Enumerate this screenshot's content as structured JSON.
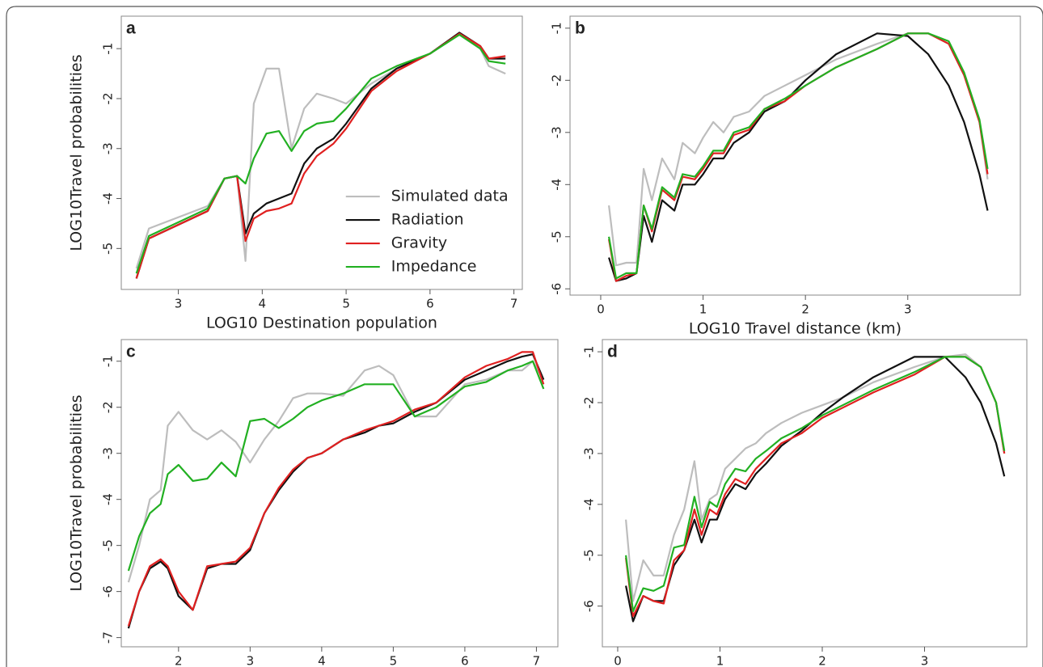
{
  "chart_data": [
    {
      "type": "line",
      "panel_label": "a",
      "xlabel": "LOG10 Destination population",
      "ylabel": "LOG10Travel probabilities",
      "legend": "center-right",
      "xlim": [
        2.32,
        7.1
      ],
      "ylim": [
        -5.82,
        -0.35
      ],
      "xticks": [
        3,
        4,
        5,
        6,
        7
      ],
      "yticks": [
        -5,
        -4,
        -3,
        -2,
        -1
      ],
      "x": [
        2.5,
        2.65,
        3.35,
        3.55,
        3.7,
        3.8,
        3.9,
        4.05,
        4.2,
        4.35,
        4.5,
        4.65,
        4.85,
        5.0,
        5.3,
        5.6,
        6.0,
        6.35,
        6.6,
        6.7,
        6.9
      ],
      "series": [
        {
          "name": "Simulated data",
          "color": "#bdbdbd",
          "values": [
            -5.4,
            -4.6,
            -4.15,
            -3.6,
            -3.55,
            -5.25,
            -2.1,
            -1.4,
            -1.4,
            -3.0,
            -2.2,
            -1.9,
            -2.0,
            -2.1,
            -1.7,
            -1.4,
            -1.1,
            -0.7,
            -1.0,
            -1.35,
            -1.5
          ]
        },
        {
          "name": "Radiation",
          "color": "#111111",
          "values": [
            -5.6,
            -4.8,
            -4.25,
            -3.6,
            -3.55,
            -4.7,
            -4.3,
            -4.1,
            -4.0,
            -3.9,
            -3.3,
            -3.0,
            -2.8,
            -2.5,
            -1.8,
            -1.4,
            -1.1,
            -0.68,
            -0.95,
            -1.2,
            -1.2
          ]
        },
        {
          "name": "Gravity",
          "color": "#e02020",
          "values": [
            -5.6,
            -4.8,
            -4.25,
            -3.6,
            -3.55,
            -4.85,
            -4.4,
            -4.25,
            -4.2,
            -4.1,
            -3.5,
            -3.15,
            -2.9,
            -2.6,
            -1.85,
            -1.45,
            -1.1,
            -0.7,
            -0.95,
            -1.2,
            -1.15
          ]
        },
        {
          "name": "Impedance",
          "color": "#22b022",
          "values": [
            -5.5,
            -4.75,
            -4.2,
            -3.6,
            -3.55,
            -3.7,
            -3.2,
            -2.7,
            -2.65,
            -3.05,
            -2.65,
            -2.5,
            -2.45,
            -2.2,
            -1.6,
            -1.35,
            -1.1,
            -0.72,
            -1.0,
            -1.25,
            -1.3
          ]
        }
      ]
    },
    {
      "type": "line",
      "panel_label": "b",
      "xlabel": "LOG10  Travel distance (km)",
      "xlim": [
        -0.3,
        4.1
      ],
      "ylim": [
        -6.12,
        -0.77
      ],
      "xticks": [
        0,
        1,
        2,
        3
      ],
      "yticks": [
        -6,
        -5,
        -4,
        -3,
        -2,
        -1
      ],
      "x": [
        0.08,
        0.15,
        0.25,
        0.35,
        0.42,
        0.5,
        0.6,
        0.72,
        0.8,
        0.92,
        1.0,
        1.1,
        1.2,
        1.3,
        1.45,
        1.6,
        1.8,
        2.0,
        2.3,
        2.7,
        3.0,
        3.2,
        3.4,
        3.55,
        3.7,
        3.78
      ],
      "series": [
        {
          "color": "#bdbdbd",
          "values": [
            -4.4,
            -5.55,
            -5.5,
            -5.5,
            -3.7,
            -4.3,
            -3.5,
            -3.9,
            -3.2,
            -3.4,
            -3.1,
            -2.8,
            -3.0,
            -2.7,
            -2.6,
            -2.3,
            -2.1,
            -1.9,
            -1.6,
            -1.3,
            -1.1,
            -1.1,
            -1.3,
            -1.9,
            -2.8,
            -3.9
          ]
        },
        {
          "color": "#111111",
          "values": [
            -5.4,
            -5.85,
            -5.8,
            -5.7,
            -4.6,
            -5.1,
            -4.3,
            -4.5,
            -4.0,
            -4.0,
            -3.8,
            -3.5,
            -3.5,
            -3.2,
            -3.0,
            -2.6,
            -2.4,
            -2.0,
            -1.5,
            -1.1,
            -1.15,
            -1.5,
            -2.1,
            -2.8,
            -3.8,
            -4.5
          ]
        },
        {
          "color": "#e02020",
          "values": [
            -5.05,
            -5.85,
            -5.75,
            -5.7,
            -4.4,
            -4.9,
            -4.1,
            -4.3,
            -3.85,
            -3.9,
            -3.7,
            -3.4,
            -3.4,
            -3.05,
            -2.95,
            -2.55,
            -2.4,
            -2.1,
            -1.75,
            -1.4,
            -1.1,
            -1.1,
            -1.3,
            -1.9,
            -2.8,
            -3.8
          ]
        },
        {
          "color": "#22b022",
          "values": [
            -5.0,
            -5.8,
            -5.7,
            -5.7,
            -4.4,
            -4.85,
            -4.05,
            -4.25,
            -3.8,
            -3.85,
            -3.65,
            -3.35,
            -3.35,
            -3.0,
            -2.9,
            -2.55,
            -2.35,
            -2.1,
            -1.75,
            -1.4,
            -1.1,
            -1.1,
            -1.25,
            -1.85,
            -2.75,
            -3.7
          ]
        }
      ]
    },
    {
      "type": "line",
      "panel_label": "c",
      "xlabel": "LOG10 Destination population",
      "ylabel": "LOG10Travel probabilities",
      "xlim": [
        1.2,
        7.3
      ],
      "ylim": [
        -7.2,
        -0.53
      ],
      "xticks": [
        2,
        3,
        4,
        5,
        6,
        7
      ],
      "yticks": [
        -7,
        -6,
        -5,
        -4,
        -3,
        -2,
        -1
      ],
      "x": [
        1.3,
        1.45,
        1.6,
        1.75,
        1.85,
        2.0,
        2.2,
        2.4,
        2.6,
        2.8,
        3.0,
        3.2,
        3.4,
        3.6,
        3.8,
        4.0,
        4.3,
        4.6,
        4.8,
        5.0,
        5.3,
        5.6,
        6.0,
        6.3,
        6.6,
        6.8,
        6.95,
        7.1
      ],
      "series": [
        {
          "color": "#bdbdbd",
          "values": [
            -5.8,
            -5.0,
            -4.0,
            -3.8,
            -2.4,
            -2.1,
            -2.5,
            -2.7,
            -2.5,
            -2.75,
            -3.2,
            -2.7,
            -2.3,
            -1.8,
            -1.7,
            -1.7,
            -1.75,
            -1.2,
            -1.1,
            -1.3,
            -2.2,
            -2.2,
            -1.5,
            -1.4,
            -1.2,
            -1.2,
            -1.0,
            -1.4
          ]
        },
        {
          "color": "#111111",
          "values": [
            -6.8,
            -6.0,
            -5.5,
            -5.35,
            -5.5,
            -6.1,
            -6.4,
            -5.5,
            -5.4,
            -5.4,
            -5.1,
            -4.3,
            -3.8,
            -3.4,
            -3.1,
            -3.0,
            -2.7,
            -2.55,
            -2.4,
            -2.35,
            -2.1,
            -1.9,
            -1.4,
            -1.2,
            -1.0,
            -0.9,
            -0.85,
            -1.4
          ]
        },
        {
          "color": "#e02020",
          "values": [
            -6.75,
            -6.0,
            -5.45,
            -5.3,
            -5.45,
            -6.0,
            -6.4,
            -5.45,
            -5.4,
            -5.35,
            -5.05,
            -4.3,
            -3.75,
            -3.35,
            -3.1,
            -3.0,
            -2.7,
            -2.5,
            -2.4,
            -2.3,
            -2.05,
            -1.9,
            -1.35,
            -1.1,
            -0.95,
            -0.8,
            -0.8,
            -1.5
          ]
        },
        {
          "color": "#22b022",
          "values": [
            -5.55,
            -4.8,
            -4.3,
            -4.1,
            -3.45,
            -3.25,
            -3.6,
            -3.55,
            -3.2,
            -3.5,
            -2.3,
            -2.25,
            -2.45,
            -2.25,
            -2.0,
            -1.85,
            -1.7,
            -1.5,
            -1.5,
            -1.5,
            -2.2,
            -2.0,
            -1.55,
            -1.45,
            -1.2,
            -1.1,
            -1.0,
            -1.6
          ]
        }
      ]
    },
    {
      "type": "line",
      "panel_label": "d",
      "xlabel": "LOG10  Travel distance (km)",
      "xlim": [
        -0.15,
        4.0
      ],
      "ylim": [
        -6.8,
        -0.76
      ],
      "xticks": [
        0,
        1,
        2,
        3
      ],
      "yticks": [
        -6,
        -5,
        -4,
        -3,
        -2,
        -1
      ],
      "x": [
        0.08,
        0.15,
        0.25,
        0.35,
        0.45,
        0.55,
        0.65,
        0.75,
        0.82,
        0.9,
        0.97,
        1.05,
        1.15,
        1.25,
        1.35,
        1.45,
        1.6,
        1.8,
        2.0,
        2.2,
        2.5,
        2.9,
        3.2,
        3.4,
        3.55,
        3.7,
        3.78
      ],
      "series": [
        {
          "color": "#bdbdbd",
          "values": [
            -4.3,
            -5.9,
            -5.1,
            -5.4,
            -5.4,
            -4.6,
            -4.1,
            -3.15,
            -4.3,
            -3.9,
            -3.8,
            -3.3,
            -3.1,
            -2.9,
            -2.8,
            -2.6,
            -2.4,
            -2.2,
            -2.05,
            -1.9,
            -1.6,
            -1.3,
            -1.1,
            -1.05,
            -1.3,
            -2.0,
            -3.0
          ]
        },
        {
          "color": "#111111",
          "values": [
            -5.6,
            -6.3,
            -5.8,
            -5.9,
            -5.9,
            -5.2,
            -4.9,
            -4.3,
            -4.75,
            -4.3,
            -4.3,
            -3.9,
            -3.6,
            -3.7,
            -3.4,
            -3.2,
            -2.85,
            -2.55,
            -2.2,
            -1.9,
            -1.5,
            -1.1,
            -1.1,
            -1.5,
            -2.0,
            -2.8,
            -3.45
          ]
        },
        {
          "color": "#e02020",
          "values": [
            -5.05,
            -6.2,
            -5.8,
            -5.9,
            -5.95,
            -5.1,
            -4.9,
            -4.1,
            -4.6,
            -4.1,
            -4.2,
            -3.8,
            -3.5,
            -3.6,
            -3.3,
            -3.1,
            -2.8,
            -2.6,
            -2.3,
            -2.1,
            -1.8,
            -1.45,
            -1.1,
            -1.1,
            -1.3,
            -2.0,
            -3.0
          ]
        },
        {
          "color": "#22b022",
          "values": [
            -5.0,
            -6.1,
            -5.65,
            -5.7,
            -5.6,
            -4.85,
            -4.8,
            -3.85,
            -4.45,
            -3.95,
            -4.05,
            -3.6,
            -3.3,
            -3.35,
            -3.1,
            -2.95,
            -2.7,
            -2.5,
            -2.25,
            -2.05,
            -1.75,
            -1.4,
            -1.1,
            -1.1,
            -1.3,
            -2.0,
            -2.95
          ]
        }
      ]
    }
  ]
}
